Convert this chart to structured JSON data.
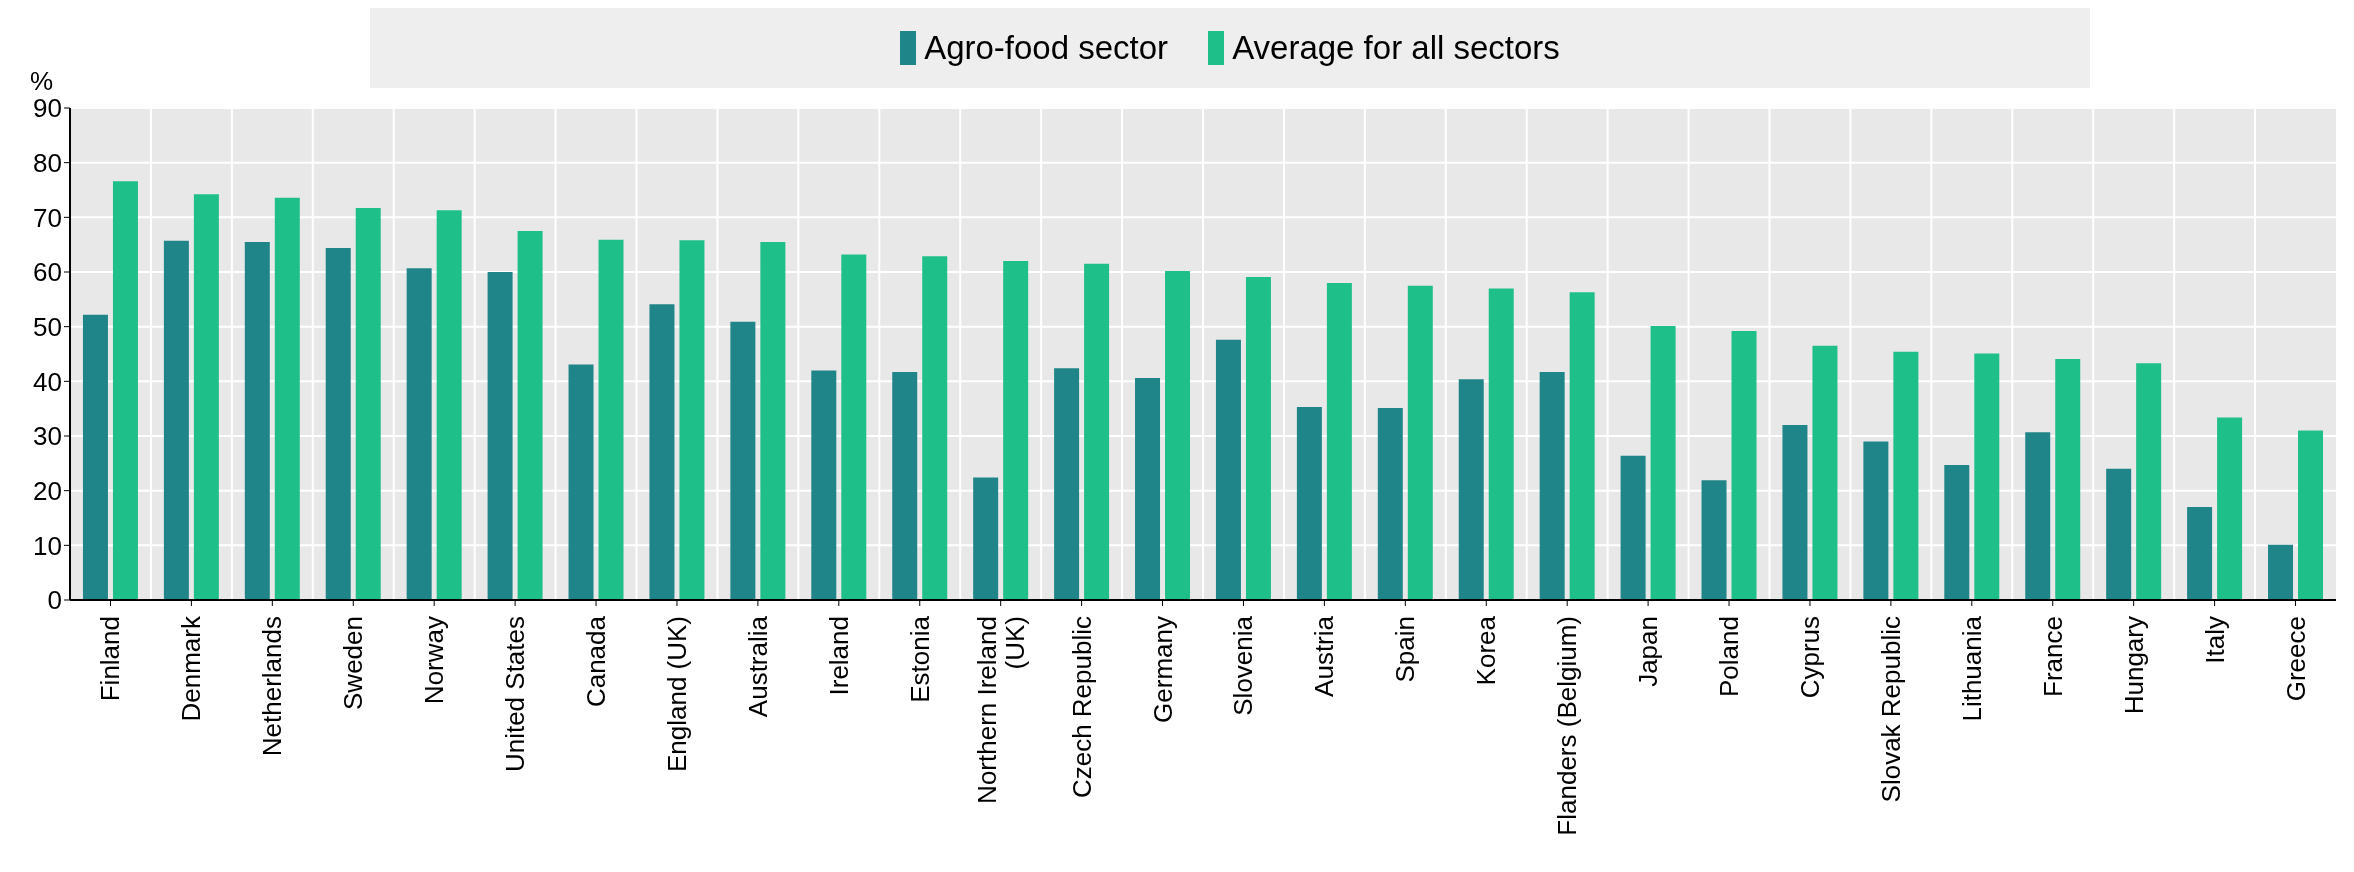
{
  "chart_data": {
    "type": "bar",
    "ylabel": "%",
    "categories": [
      "Finland",
      "Denmark",
      "Netherlands",
      "Sweden",
      "Norway",
      "United States",
      "Canada",
      "England (UK)",
      "Australia",
      "Ireland",
      "Estonia",
      "Northern Ireland (UK)",
      "Czech Republic",
      "Germany",
      "Slovenia",
      "Austria",
      "Spain",
      "Korea",
      "Flanders (Belgium)",
      "Japan",
      "Poland",
      "Cyprus",
      "Slovak Republic",
      "Lithuania",
      "France",
      "Hungary",
      "Italy",
      "Greece"
    ],
    "series": [
      {
        "name": "Agro-food sector",
        "color": "#1f8589",
        "values": [
          52.2,
          65.7,
          65.5,
          64.4,
          60.7,
          60.0,
          43.1,
          54.1,
          50.9,
          42.0,
          41.7,
          22.4,
          42.4,
          40.6,
          47.6,
          35.3,
          35.1,
          40.4,
          41.7,
          26.4,
          21.9,
          32.0,
          29.0,
          24.7,
          30.7,
          24.0,
          17.0,
          10.1
        ]
      },
      {
        "name": "Average for all sectors",
        "color": "#1fbf8a",
        "values": [
          76.6,
          74.2,
          73.6,
          71.7,
          71.3,
          67.5,
          65.9,
          65.8,
          65.5,
          63.2,
          62.9,
          62.0,
          61.5,
          60.2,
          59.1,
          58.0,
          57.5,
          57.0,
          56.3,
          50.1,
          49.2,
          46.5,
          45.4,
          45.1,
          44.1,
          43.3,
          33.4,
          31.0
        ]
      }
    ],
    "ylim": [
      0,
      90
    ],
    "yticks": [
      0,
      10,
      20,
      30,
      40,
      50,
      60,
      70,
      80,
      90
    ],
    "grid": true,
    "legend": "top"
  }
}
